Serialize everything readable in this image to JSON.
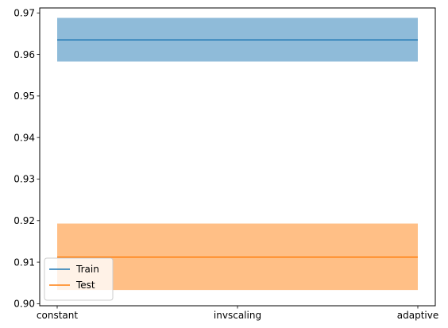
{
  "chart_data": {
    "type": "line",
    "categories": [
      "constant",
      "invscaling",
      "adaptive"
    ],
    "series": [
      {
        "name": "Train",
        "color": "#1f77b4",
        "band_color": "#8fbbd9",
        "values": [
          0.9635,
          0.9635,
          0.9635
        ],
        "lower": [
          0.9583,
          0.9583,
          0.9583
        ],
        "upper": [
          0.9688,
          0.9688,
          0.9688
        ]
      },
      {
        "name": "Test",
        "color": "#ff7f0e",
        "band_color": "#ffbf86",
        "values": [
          0.9112,
          0.9112,
          0.9112
        ],
        "lower": [
          0.9033,
          0.9033,
          0.9033
        ],
        "upper": [
          0.9193,
          0.9193,
          0.9193
        ]
      }
    ],
    "yticks": [
      "0.90",
      "0.91",
      "0.92",
      "0.93",
      "0.94",
      "0.95",
      "0.96",
      "0.97"
    ],
    "ylim": [
      0.8995,
      0.9712
    ],
    "grid": false,
    "legend_position": "lower-left",
    "title": "",
    "xlabel": "",
    "ylabel": ""
  }
}
